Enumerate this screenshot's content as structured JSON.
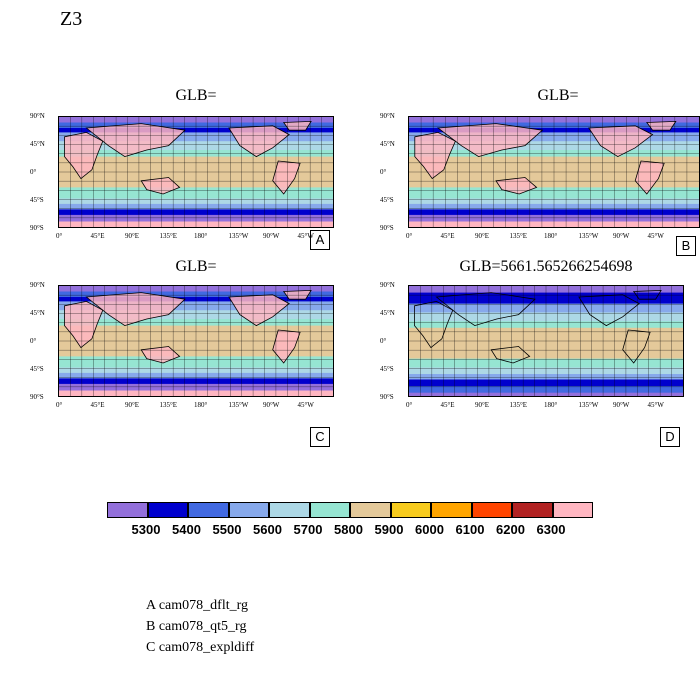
{
  "page_title": "Z3",
  "panels": [
    {
      "title": "GLB=",
      "letter": "A"
    },
    {
      "title": "GLB=",
      "letter": "B"
    },
    {
      "title": "GLB=",
      "letter": "C"
    },
    {
      "title": "GLB=5661.565266254698",
      "letter": "D"
    }
  ],
  "lat_ticks": [
    "90°N",
    "45°N",
    "0°",
    "45°S",
    "90°S"
  ],
  "lon_ticks": [
    "0°",
    "45°E",
    "90°E",
    "135°E",
    "180°",
    "135°W",
    "90°W",
    "45°W"
  ],
  "colorbar": {
    "labels": [
      "5300",
      "5400",
      "5500",
      "5600",
      "5700",
      "5800",
      "5900",
      "6000",
      "6100",
      "6200",
      "6300"
    ],
    "colors": [
      "#9370DB",
      "#0000CD",
      "#4169E1",
      "#87A9EB",
      "#ADD8E6",
      "#96E5D2",
      "#E4C99A",
      "#F7CB1E",
      "#FFA500",
      "#FF4500",
      "#B22222",
      "#FFB6C1"
    ]
  },
  "legend": [
    "A  cam078_dflt_rg",
    "B  cam078_qt5_rg",
    "C  cam078_expldiff"
  ]
}
